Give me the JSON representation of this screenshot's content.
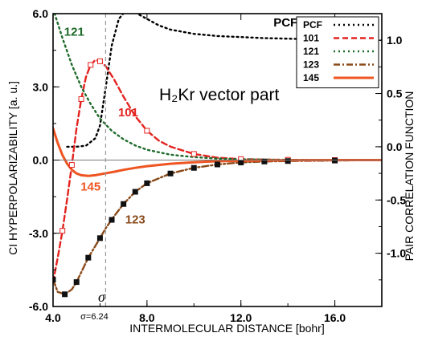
{
  "chart_data": {
    "type": "line",
    "title": "H₂Kr  vector part",
    "xlabel": "INTERMOLECULAR DISTANCE [bohr]",
    "ylabel": "CI HYPERPOLARIZABILITY [a. u.]",
    "y2label": "PAIR CORRELATION FUNCTION",
    "xlim": [
      4.0,
      18.0
    ],
    "ylim": [
      -6.0,
      6.0
    ],
    "y2lim": [
      -1.5,
      1.25
    ],
    "xticks": [
      "4.0",
      "8.0",
      "12.0",
      "16.0"
    ],
    "yticks": [
      "-6.0",
      "-3.0",
      "0.0",
      "3.0",
      "6.0"
    ],
    "y2ticks": [
      "-1.0",
      "-0.5",
      "0.0",
      "0.5",
      "1.0"
    ],
    "grid": false,
    "legend_position": "top-right",
    "sigma": {
      "x": 6.24,
      "symbol": "σ",
      "label": "σ=6.24"
    },
    "series": [
      {
        "name": "PCF",
        "axis": "y2",
        "color": "#000000",
        "style": "dotted",
        "x": [
          4.6,
          5.0,
          5.4,
          5.8,
          6.0,
          6.24,
          6.5,
          6.8,
          7.1,
          7.5,
          8.0,
          8.5,
          9.0,
          10.0,
          11.0,
          12.0,
          13.0,
          14.0,
          15.0,
          16.0,
          17.0,
          18.0
        ],
        "values": [
          0.0,
          0.0,
          0.01,
          0.08,
          0.2,
          0.55,
          0.95,
          1.2,
          1.28,
          1.26,
          1.2,
          1.14,
          1.1,
          1.06,
          1.04,
          1.03,
          1.02,
          1.015,
          1.01,
          1.005,
          1.003,
          1.0
        ]
      },
      {
        "name": "101",
        "axis": "y",
        "color": "#e32320",
        "style": "dashed",
        "x": [
          4.0,
          4.2,
          4.4,
          4.6,
          4.8,
          5.0,
          5.2,
          5.4,
          5.6,
          5.8,
          6.0,
          6.24,
          6.6,
          7.0,
          7.5,
          8.0,
          8.5,
          9.0,
          10.0,
          11.0,
          12.0,
          13.0,
          14.0,
          15.0,
          16.0,
          17.0,
          18.0
        ],
        "values": [
          -5.0,
          -4.0,
          -2.9,
          -1.6,
          -0.2,
          1.3,
          2.5,
          3.4,
          3.9,
          4.1,
          4.05,
          3.85,
          3.3,
          2.6,
          1.8,
          1.2,
          0.8,
          0.55,
          0.25,
          0.1,
          0.04,
          0.02,
          0.01,
          0.0,
          0.0,
          0.0,
          0.0
        ],
        "markers_x": [
          4.4,
          4.8,
          5.2,
          5.6,
          6.0,
          8.0,
          10.0,
          12.0,
          14.0,
          16.0
        ],
        "markers_y": [
          -2.9,
          -0.2,
          2.5,
          3.9,
          4.05,
          1.2,
          0.25,
          0.04,
          0.01,
          0.0
        ],
        "marker": "open-square"
      },
      {
        "name": "121",
        "axis": "y",
        "color": "#1e6b2a",
        "style": "dotted",
        "x": [
          4.0,
          4.4,
          4.8,
          5.2,
          5.6,
          6.0,
          6.5,
          7.0,
          7.5,
          8.0,
          9.0,
          10.0,
          11.0,
          12.0,
          14.0,
          16.0,
          18.0
        ],
        "values": [
          6.2,
          5.0,
          3.9,
          3.0,
          2.3,
          1.7,
          1.2,
          0.85,
          0.6,
          0.42,
          0.22,
          0.12,
          0.06,
          0.03,
          0.01,
          0.0,
          0.0
        ]
      },
      {
        "name": "123",
        "axis": "y",
        "color": "#8a4a1a",
        "style": "dash-dot",
        "x": [
          4.0,
          4.2,
          4.5,
          4.8,
          5.0,
          5.5,
          6.0,
          6.24,
          6.6,
          7.0,
          7.5,
          8.0,
          9.0,
          10.0,
          11.0,
          12.0,
          13.0,
          14.0,
          16.0,
          18.0
        ],
        "values": [
          -4.9,
          -5.4,
          -5.5,
          -5.3,
          -5.0,
          -4.0,
          -3.2,
          -2.8,
          -2.3,
          -1.8,
          -1.3,
          -0.95,
          -0.55,
          -0.32,
          -0.18,
          -0.1,
          -0.06,
          -0.04,
          -0.02,
          0.0
        ],
        "markers_x": [
          4.0,
          4.5,
          5.0,
          5.5,
          6.0,
          6.5,
          7.0,
          7.5,
          8.0,
          9.0,
          10.0,
          11.0,
          12.0,
          13.0,
          14.0,
          16.0
        ],
        "markers_y": [
          -4.9,
          -5.5,
          -5.0,
          -4.0,
          -3.2,
          -2.45,
          -1.8,
          -1.3,
          -0.95,
          -0.55,
          -0.32,
          -0.18,
          -0.1,
          -0.06,
          -0.04,
          -0.02
        ],
        "marker": "filled-square"
      },
      {
        "name": "145",
        "axis": "y",
        "color": "#ee5522",
        "style": "solid",
        "x": [
          4.0,
          4.2,
          4.4,
          4.6,
          4.8,
          5.0,
          5.2,
          5.5,
          5.8,
          6.2,
          6.6,
          7.0,
          7.5,
          8.0,
          9.0,
          10.0,
          11.0,
          12.0,
          14.0,
          16.0,
          18.0
        ],
        "values": [
          1.3,
          0.7,
          0.2,
          -0.15,
          -0.4,
          -0.55,
          -0.62,
          -0.65,
          -0.62,
          -0.55,
          -0.48,
          -0.4,
          -0.32,
          -0.25,
          -0.15,
          -0.09,
          -0.05,
          -0.03,
          -0.01,
          0.0,
          0.0
        ]
      }
    ],
    "annotations": [
      {
        "text": "121",
        "series": "121",
        "x": 4.9,
        "y": 5.1
      },
      {
        "text": "101",
        "series": "101",
        "x": 7.2,
        "y": 1.8
      },
      {
        "text": "145",
        "series": "145",
        "x": 5.6,
        "y": -1.25
      },
      {
        "text": "123",
        "series": "123",
        "x": 7.5,
        "y": -2.6
      },
      {
        "text": "PCF",
        "series": "PCF",
        "axis": "y2",
        "x": 13.9,
        "y": 1.13
      }
    ]
  }
}
